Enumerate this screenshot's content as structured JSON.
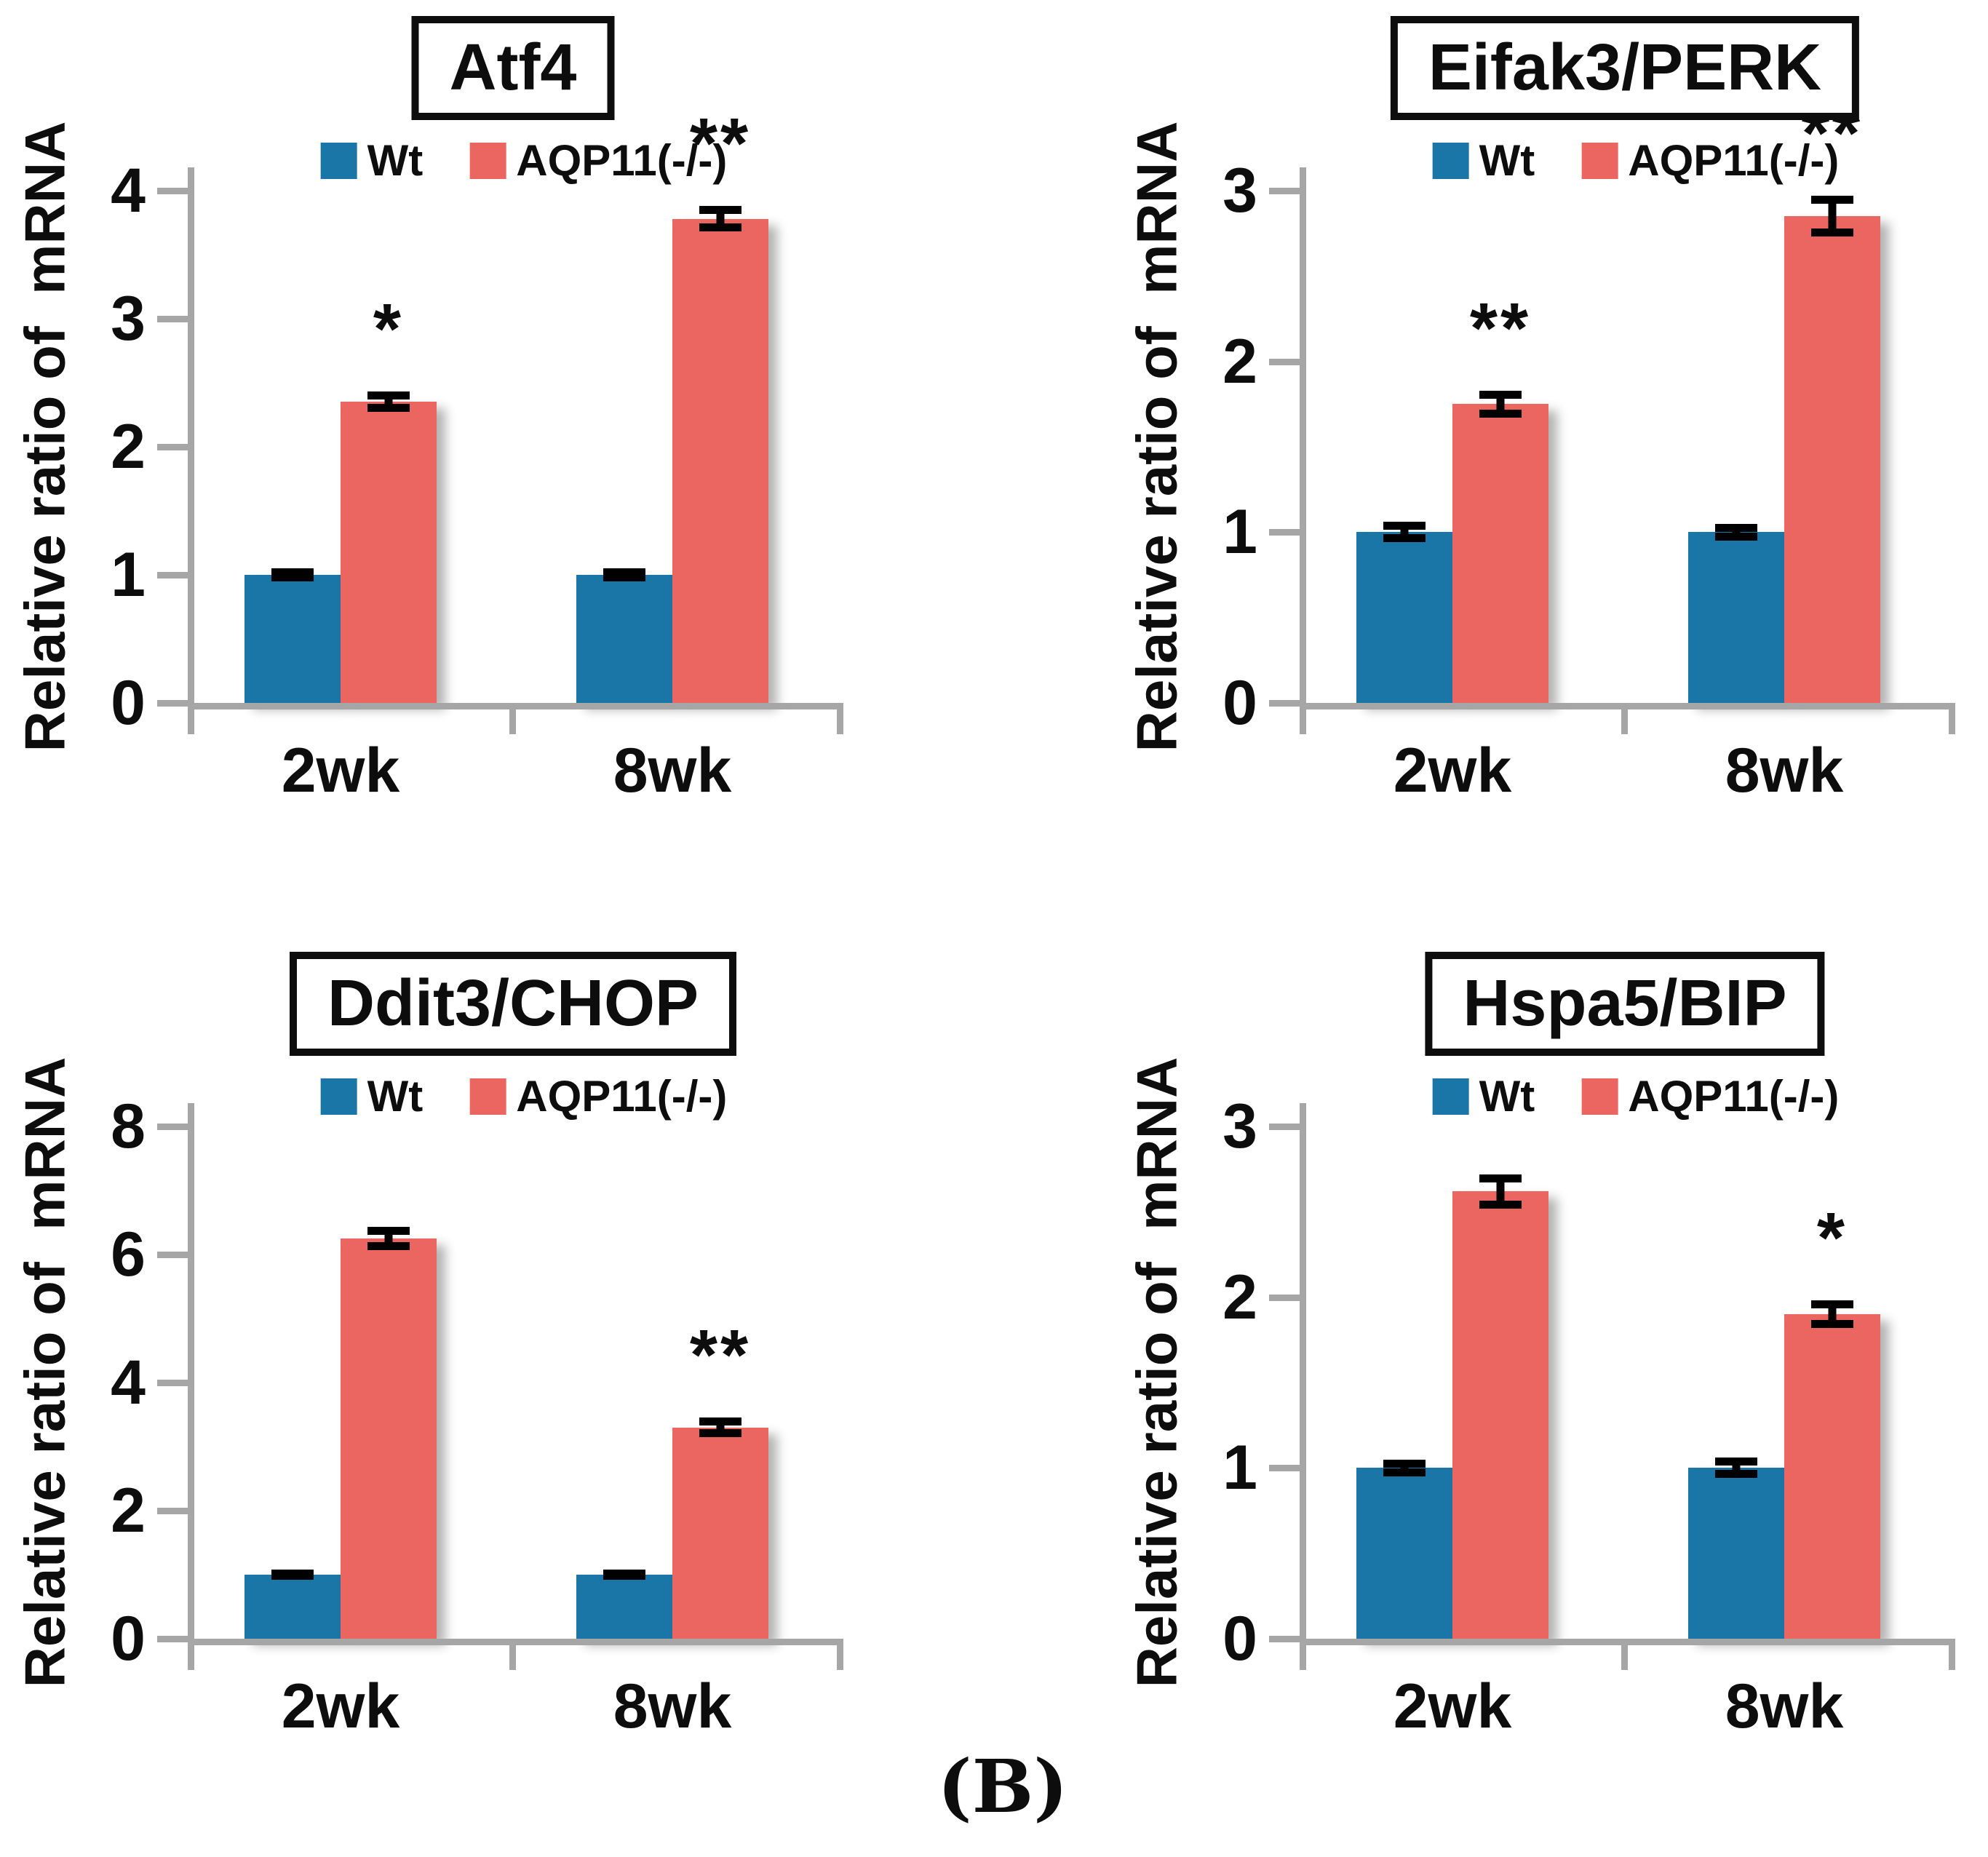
{
  "caption": "(B)",
  "colors": {
    "wt_blue": "#1B76A8",
    "ko_salmon": "#EC6661",
    "axis_gray": "#A6A6A6",
    "error_black": "#000000"
  },
  "chart_data": [
    {
      "type": "bar",
      "title": "Atf4",
      "ylabel": "Relative ratio of  mRNA",
      "categories": [
        "2wk",
        "8wk"
      ],
      "ylim": [
        0,
        4
      ],
      "yticks": [
        0,
        1,
        2,
        3,
        4
      ],
      "grid": false,
      "legend_position": "top",
      "series": [
        {
          "name": "Wt",
          "values": [
            1.0,
            1.0
          ],
          "errors": [
            0.05,
            0.05
          ]
        },
        {
          "name": "AQP11(-/-)",
          "values": [
            2.35,
            3.78
          ],
          "errors": [
            0.08,
            0.1
          ]
        }
      ],
      "significance": [
        "*",
        "**"
      ]
    },
    {
      "type": "bar",
      "title": "Eifak3/PERK",
      "ylabel": "Relative ratio of  mRNA",
      "categories": [
        "2wk",
        "8wk"
      ],
      "ylim": [
        0,
        3
      ],
      "yticks": [
        0,
        1,
        2,
        3
      ],
      "grid": false,
      "legend_position": "top",
      "series": [
        {
          "name": "Wt",
          "values": [
            1.0,
            1.0
          ],
          "errors": [
            0.06,
            0.05
          ]
        },
        {
          "name": "AQP11(-/-)",
          "values": [
            1.75,
            2.85
          ],
          "errors": [
            0.08,
            0.12
          ]
        }
      ],
      "significance": [
        "**",
        "**"
      ]
    },
    {
      "type": "bar",
      "title": "Ddit3/CHOP",
      "ylabel": "Relative ratio of  mRNA",
      "categories": [
        "2wk",
        "8wk"
      ],
      "ylim": [
        0,
        8
      ],
      "yticks": [
        0,
        2,
        4,
        6,
        8
      ],
      "grid": false,
      "legend_position": "top",
      "series": [
        {
          "name": "Wt",
          "values": [
            1.0,
            1.0
          ],
          "errors": [
            0.05,
            0.05
          ]
        },
        {
          "name": "AQP11(-/-)",
          "values": [
            6.25,
            3.3
          ],
          "errors": [
            0.18,
            0.15
          ]
        }
      ],
      "significance": [
        "",
        "**"
      ]
    },
    {
      "type": "bar",
      "title": "Hspa5/BIP",
      "ylabel": "Relative ratio of  mRNA",
      "categories": [
        "2wk",
        "8wk"
      ],
      "ylim": [
        0,
        3
      ],
      "yticks": [
        0,
        1,
        2,
        3
      ],
      "grid": false,
      "legend_position": "top",
      "series": [
        {
          "name": "Wt",
          "values": [
            1.0,
            1.0
          ],
          "errors": [
            0.05,
            0.06
          ]
        },
        {
          "name": "AQP11(-/-)",
          "values": [
            2.62,
            1.9
          ],
          "errors": [
            0.1,
            0.08
          ]
        }
      ],
      "significance": [
        "",
        "*"
      ]
    }
  ]
}
